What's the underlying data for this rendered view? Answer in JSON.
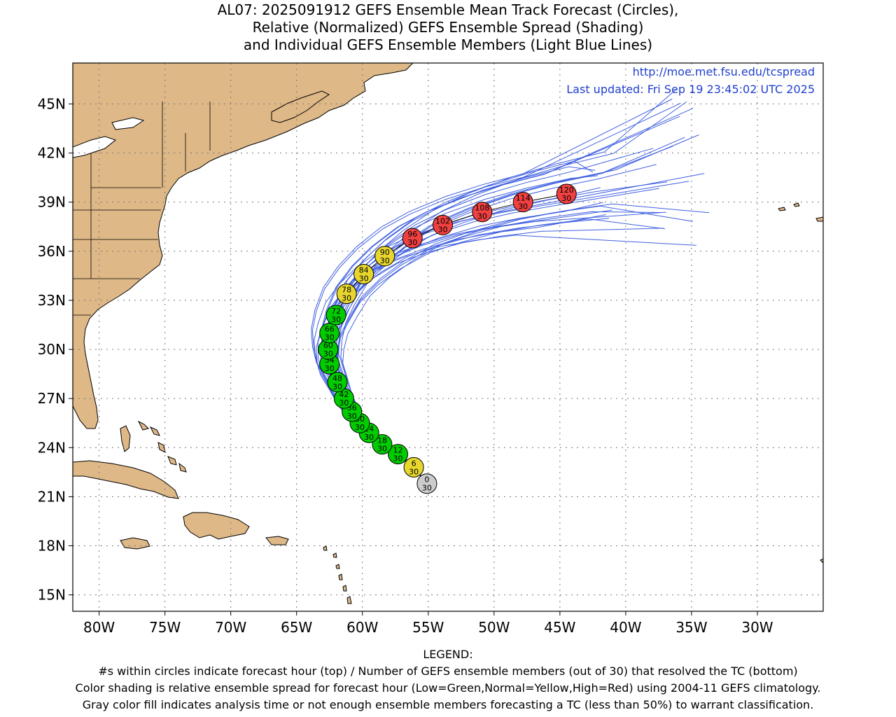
{
  "header": {
    "title_lines": [
      "AL07: 2025091912 GEFS Ensemble Mean Track Forecast (Circles),",
      "Relative (Normalized) GEFS Ensemble Spread (Shading)",
      "and Individual GEFS Ensemble Members (Light Blue Lines)"
    ]
  },
  "map": {
    "url": "http://moe.met.fsu.edu/tcspread",
    "updated": "Last updated: Fri Sep 19 23:45:02 UTC 2025",
    "lon_range": [
      -82,
      -25
    ],
    "lat_range": [
      14,
      47.5
    ],
    "lat_labels": [
      {
        "lat": 45,
        "label": "45N"
      },
      {
        "lat": 42,
        "label": "42N"
      },
      {
        "lat": 39,
        "label": "39N"
      },
      {
        "lat": 36,
        "label": "36N"
      },
      {
        "lat": 33,
        "label": "33N"
      },
      {
        "lat": 30,
        "label": "30N"
      },
      {
        "lat": 27,
        "label": "27N"
      },
      {
        "lat": 24,
        "label": "24N"
      },
      {
        "lat": 21,
        "label": "21N"
      },
      {
        "lat": 18,
        "label": "18N"
      },
      {
        "lat": 15,
        "label": "15N"
      }
    ],
    "lon_labels": [
      {
        "lon": -80,
        "label": "80W"
      },
      {
        "lon": -75,
        "label": "75W"
      },
      {
        "lon": -70,
        "label": "70W"
      },
      {
        "lon": -65,
        "label": "65W"
      },
      {
        "lon": -60,
        "label": "60W"
      },
      {
        "lon": -55,
        "label": "55W"
      },
      {
        "lon": -50,
        "label": "50W"
      },
      {
        "lon": -45,
        "label": "45W"
      },
      {
        "lon": -40,
        "label": "40W"
      },
      {
        "lon": -35,
        "label": "35W"
      },
      {
        "lon": -30,
        "label": "30W"
      }
    ],
    "colors": {
      "land": "#deb887",
      "green": "#00cc00",
      "yellow": "#e6d62e",
      "red": "#f04040",
      "gray": "#cccccc",
      "member": "#4060e0",
      "blue_text": "#2040d0"
    },
    "track": [
      {
        "hour": "0",
        "members": "30",
        "lon": -55.1,
        "lat": 21.8,
        "spread": "gray"
      },
      {
        "hour": "6",
        "members": "30",
        "lon": -56.1,
        "lat": 22.8,
        "spread": "yellow"
      },
      {
        "hour": "12",
        "members": "30",
        "lon": -57.3,
        "lat": 23.6,
        "spread": "green"
      },
      {
        "hour": "18",
        "members": "30",
        "lon": -58.5,
        "lat": 24.2,
        "spread": "green"
      },
      {
        "hour": "24",
        "members": "30",
        "lon": -59.5,
        "lat": 24.9,
        "spread": "green"
      },
      {
        "hour": "30",
        "members": "30",
        "lon": -60.2,
        "lat": 25.5,
        "spread": "green"
      },
      {
        "hour": "36",
        "members": "30",
        "lon": -60.8,
        "lat": 26.2,
        "spread": "green"
      },
      {
        "hour": "42",
        "members": "30",
        "lon": -61.4,
        "lat": 27.0,
        "spread": "green"
      },
      {
        "hour": "48",
        "members": "30",
        "lon": -61.9,
        "lat": 28.0,
        "spread": "green"
      },
      {
        "hour": "54",
        "members": "30",
        "lon": -62.5,
        "lat": 29.1,
        "spread": "green"
      },
      {
        "hour": "60",
        "members": "30",
        "lon": -62.6,
        "lat": 30.0,
        "spread": "green"
      },
      {
        "hour": "66",
        "members": "30",
        "lon": -62.5,
        "lat": 31.0,
        "spread": "green"
      },
      {
        "hour": "72",
        "members": "30",
        "lon": -62.0,
        "lat": 32.1,
        "spread": "green"
      },
      {
        "hour": "78",
        "members": "30",
        "lon": -61.2,
        "lat": 33.4,
        "spread": "yellow"
      },
      {
        "hour": "84",
        "members": "30",
        "lon": -59.9,
        "lat": 34.6,
        "spread": "yellow"
      },
      {
        "hour": "90",
        "members": "30",
        "lon": -58.3,
        "lat": 35.7,
        "spread": "yellow"
      },
      {
        "hour": "96",
        "members": "30",
        "lon": -56.2,
        "lat": 36.8,
        "spread": "red"
      },
      {
        "hour": "102",
        "members": "30",
        "lon": -53.9,
        "lat": 37.6,
        "spread": "red"
      },
      {
        "hour": "108",
        "members": "30",
        "lon": -50.9,
        "lat": 38.4,
        "spread": "red"
      },
      {
        "hour": "114",
        "members": "30",
        "lon": -47.8,
        "lat": 39.0,
        "spread": "red"
      },
      {
        "hour": "120",
        "members": "30",
        "lon": -44.5,
        "lat": 39.5,
        "spread": "red"
      }
    ]
  },
  "legend": {
    "heading": "LEGEND:",
    "line1": "#s within circles indicate forecast hour (top) / Number of GEFS ensemble members (out of 30) that resolved the TC (bottom)",
    "line2": "Color shading is relative ensemble spread for forecast hour (Low=Green,Normal=Yellow,High=Red) using 2004-11 GEFS climatology.",
    "line3": "Gray color fill indicates analysis time or not enough ensemble members forecasting a TC (less than 50%) to warrant classification."
  }
}
